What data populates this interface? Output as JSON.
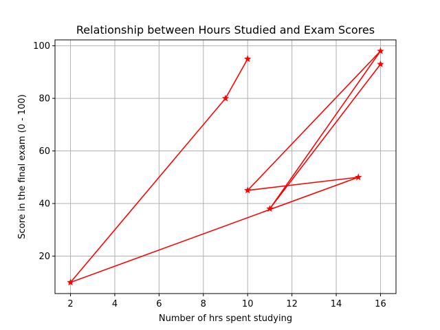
{
  "chart_data": {
    "type": "line",
    "title": "Relationship between Hours Studied and Exam Scores",
    "xlabel": "Number of hrs spent studying",
    "ylabel": "Score in the final exam (0 - 100)",
    "xlim": [
      1.3,
      16.7
    ],
    "ylim": [
      5.75,
      102.25
    ],
    "xticks": [
      2,
      4,
      6,
      8,
      10,
      12,
      14,
      16
    ],
    "yticks": [
      20,
      40,
      60,
      80,
      100
    ],
    "grid": true,
    "series": [
      {
        "color": "#ff0000",
        "marker": "star",
        "x": [
          10,
          9,
          2,
          15,
          10,
          16,
          11,
          16
        ],
        "y": [
          95,
          80,
          10,
          50,
          45,
          98,
          38,
          93
        ]
      }
    ]
  }
}
